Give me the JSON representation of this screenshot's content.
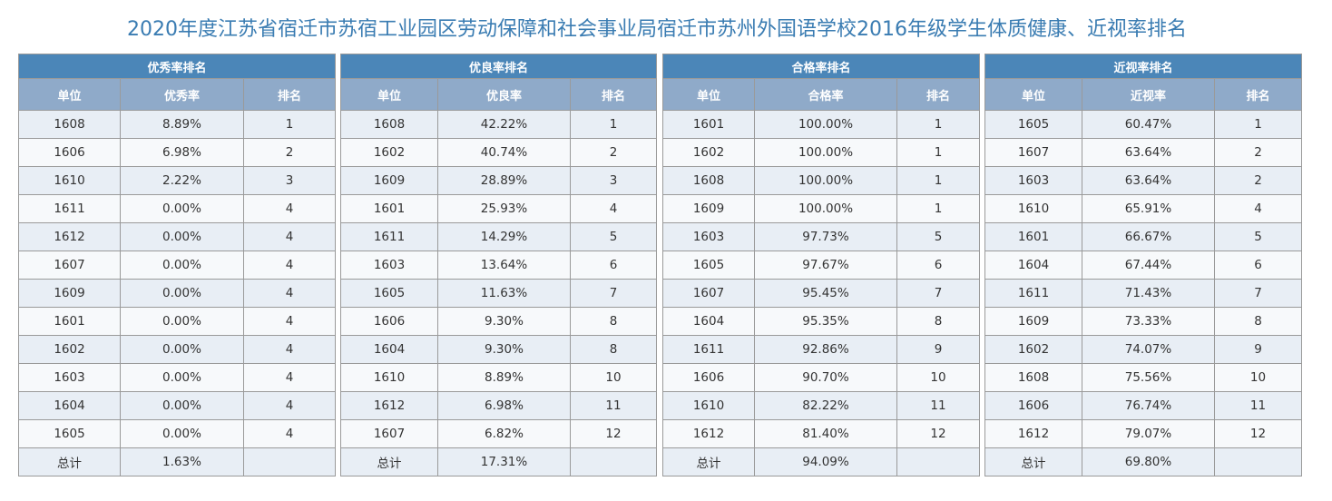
{
  "title": "2020年度江苏省宿迁市苏宿工业园区劳动保障和社会事业局宿迁市苏州外国语学校2016年级学生体质健康、近视率排名",
  "tables": [
    {
      "caption": "优秀率排名",
      "columns": [
        "单位",
        "优秀率",
        "排名"
      ],
      "rows": [
        [
          "1608",
          "8.89%",
          "1"
        ],
        [
          "1606",
          "6.98%",
          "2"
        ],
        [
          "1610",
          "2.22%",
          "3"
        ],
        [
          "1611",
          "0.00%",
          "4"
        ],
        [
          "1612",
          "0.00%",
          "4"
        ],
        [
          "1607",
          "0.00%",
          "4"
        ],
        [
          "1609",
          "0.00%",
          "4"
        ],
        [
          "1601",
          "0.00%",
          "4"
        ],
        [
          "1602",
          "0.00%",
          "4"
        ],
        [
          "1603",
          "0.00%",
          "4"
        ],
        [
          "1604",
          "0.00%",
          "4"
        ],
        [
          "1605",
          "0.00%",
          "4"
        ]
      ],
      "total": [
        "总计",
        "1.63%",
        ""
      ]
    },
    {
      "caption": "优良率排名",
      "columns": [
        "单位",
        "优良率",
        "排名"
      ],
      "rows": [
        [
          "1608",
          "42.22%",
          "1"
        ],
        [
          "1602",
          "40.74%",
          "2"
        ],
        [
          "1609",
          "28.89%",
          "3"
        ],
        [
          "1601",
          "25.93%",
          "4"
        ],
        [
          "1611",
          "14.29%",
          "5"
        ],
        [
          "1603",
          "13.64%",
          "6"
        ],
        [
          "1605",
          "11.63%",
          "7"
        ],
        [
          "1606",
          "9.30%",
          "8"
        ],
        [
          "1604",
          "9.30%",
          "8"
        ],
        [
          "1610",
          "8.89%",
          "10"
        ],
        [
          "1612",
          "6.98%",
          "11"
        ],
        [
          "1607",
          "6.82%",
          "12"
        ]
      ],
      "total": [
        "总计",
        "17.31%",
        ""
      ]
    },
    {
      "caption": "合格率排名",
      "columns": [
        "单位",
        "合格率",
        "排名"
      ],
      "rows": [
        [
          "1601",
          "100.00%",
          "1"
        ],
        [
          "1602",
          "100.00%",
          "1"
        ],
        [
          "1608",
          "100.00%",
          "1"
        ],
        [
          "1609",
          "100.00%",
          "1"
        ],
        [
          "1603",
          "97.73%",
          "5"
        ],
        [
          "1605",
          "97.67%",
          "6"
        ],
        [
          "1607",
          "95.45%",
          "7"
        ],
        [
          "1604",
          "95.35%",
          "8"
        ],
        [
          "1611",
          "92.86%",
          "9"
        ],
        [
          "1606",
          "90.70%",
          "10"
        ],
        [
          "1610",
          "82.22%",
          "11"
        ],
        [
          "1612",
          "81.40%",
          "12"
        ]
      ],
      "total": [
        "总计",
        "94.09%",
        ""
      ]
    },
    {
      "caption": "近视率排名",
      "columns": [
        "单位",
        "近视率",
        "排名"
      ],
      "rows": [
        [
          "1605",
          "60.47%",
          "1"
        ],
        [
          "1607",
          "63.64%",
          "2"
        ],
        [
          "1603",
          "63.64%",
          "2"
        ],
        [
          "1610",
          "65.91%",
          "4"
        ],
        [
          "1601",
          "66.67%",
          "5"
        ],
        [
          "1604",
          "67.44%",
          "6"
        ],
        [
          "1611",
          "71.43%",
          "7"
        ],
        [
          "1609",
          "73.33%",
          "8"
        ],
        [
          "1602",
          "74.07%",
          "9"
        ],
        [
          "1608",
          "75.56%",
          "10"
        ],
        [
          "1606",
          "76.74%",
          "11"
        ],
        [
          "1612",
          "79.07%",
          "12"
        ]
      ],
      "total": [
        "总计",
        "69.80%",
        ""
      ]
    }
  ]
}
